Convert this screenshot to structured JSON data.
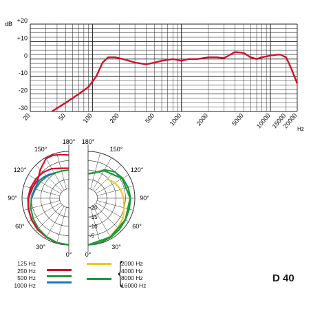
{
  "chart_data": [
    {
      "type": "line",
      "xscale": "log",
      "xlim": [
        20,
        20000
      ],
      "ylim": [
        -30,
        20
      ],
      "unit_y": "dB",
      "unit_x": "Hz",
      "y_ticks": [
        {
          "value": 20,
          "label": "+20"
        },
        {
          "value": 10,
          "label": "+10"
        },
        {
          "value": 0,
          "label": "0"
        },
        {
          "value": -10,
          "label": "-10"
        },
        {
          "value": -20,
          "label": "-20"
        },
        {
          "value": -30,
          "label": "-30"
        }
      ],
      "x_ticks": [
        {
          "value": 20,
          "label": "20"
        },
        {
          "value": 50,
          "label": "50"
        },
        {
          "value": 100,
          "label": "100"
        },
        {
          "value": 200,
          "label": "200"
        },
        {
          "value": 500,
          "label": "500"
        },
        {
          "value": 1000,
          "label": "1000"
        },
        {
          "value": 2000,
          "label": "2000"
        },
        {
          "value": 5000,
          "label": "5000"
        },
        {
          "value": 10000,
          "label": "10000"
        },
        {
          "value": 15000,
          "label": "15000"
        },
        {
          "value": 20000,
          "label": "20000"
        }
      ],
      "grid": true,
      "series": [
        {
          "color": "#d0102a",
          "x": [
            35,
            50,
            70,
            90,
            110,
            130,
            150,
            180,
            220,
            300,
            400,
            500,
            600,
            800,
            1000,
            1200,
            1500,
            2000,
            2500,
            3000,
            4000,
            5000,
            6000,
            7000,
            8000,
            10000,
            12000,
            13000,
            15000,
            17000,
            20000
          ],
          "y": [
            -30,
            -25,
            -20,
            -16,
            -10,
            -2,
            1,
            1,
            0,
            -2,
            -3,
            -2,
            -1,
            0,
            -1,
            0,
            0,
            1,
            1,
            0.5,
            4,
            3.5,
            1,
            0,
            1,
            2,
            2.5,
            2.5,
            1,
            -5,
            -14
          ]
        }
      ]
    },
    {
      "type": "polar",
      "r_min_db": -25,
      "r_ticks": [
        {
          "value": -5,
          "label": "-5"
        },
        {
          "value": -10,
          "label": "-10"
        },
        {
          "value": -15,
          "label": "-15"
        },
        {
          "value": -20,
          "label": "-20"
        }
      ],
      "angle_labels_left": [
        "180°",
        "150°",
        "120°",
        "90°",
        "60°",
        "30°",
        "0°"
      ],
      "angle_labels_right": [
        "180°",
        "150°",
        "120°",
        "90°",
        "60°",
        "30°",
        "0°"
      ],
      "series": [
        {
          "name": "125 Hz",
          "side": "left",
          "color": "#d0102a",
          "angles": [
            0,
            15,
            30,
            45,
            60,
            75,
            90,
            105,
            120,
            135,
            150,
            160,
            170,
            180
          ],
          "values": [
            0,
            -0.3,
            -1,
            -1.3,
            -2,
            -2.8,
            -3.5,
            -4.6,
            -5.8,
            -3.5,
            -0.6,
            -0.6,
            -1.4,
            -2
          ]
        },
        {
          "name": "250 Hz",
          "side": "left",
          "color": "#d0102a",
          "angles": [
            0,
            15,
            30,
            45,
            60,
            75,
            90,
            105,
            120,
            135,
            150,
            165,
            180
          ],
          "values": [
            0,
            -0.3,
            -1,
            -1.5,
            -2,
            -2.6,
            -3.2,
            -3.8,
            -4.6,
            -5.5,
            -6.8,
            -8.5,
            -9
          ]
        },
        {
          "name": "500 Hz",
          "side": "left",
          "color": "#1e9a3a",
          "angles": [
            0,
            15,
            30,
            45,
            60,
            75,
            90,
            105,
            120,
            135,
            150,
            165,
            180
          ],
          "values": [
            0,
            -0.4,
            -1.2,
            -2,
            -3,
            -4,
            -5,
            -6.5,
            -7.5,
            -8.5,
            -9.5,
            -10,
            -10
          ]
        },
        {
          "name": "1000 Hz",
          "side": "left",
          "color": "#1a73c8",
          "angles": [
            90,
            105,
            120,
            130,
            140,
            150
          ],
          "values": [
            -5.2,
            -6,
            -6.5,
            -7.5,
            -8.5,
            -9.5
          ]
        },
        {
          "name": "2000 Hz",
          "side": "right",
          "color": "#f2c81a",
          "angles": [
            0,
            15,
            30,
            45,
            60,
            75,
            90,
            105,
            120,
            130,
            135
          ],
          "values": [
            0,
            -0.5,
            -1.5,
            -2.5,
            -3.5,
            -5,
            -6,
            -7,
            -8.5,
            -10,
            -10.5
          ]
        },
        {
          "name": "4000 Hz",
          "side": "right",
          "color": "#1e9a3a",
          "angles": [
            0,
            15,
            30,
            45,
            60,
            75,
            90,
            105,
            120,
            135,
            150,
            165,
            180
          ],
          "values": [
            0,
            -0.3,
            -0.8,
            -1.3,
            -1.9,
            -2.2,
            -2.3,
            -2.8,
            -3.7,
            -5,
            -7.5,
            -11,
            -12
          ]
        },
        {
          "name": "8000 Hz",
          "side": "right",
          "color": "#1e9a3a",
          "angles": [
            0,
            30,
            60,
            90,
            120,
            150,
            180
          ],
          "values": [
            0,
            -1,
            -2,
            -2.5,
            -4,
            -8,
            -12
          ]
        },
        {
          "name": "16000 Hz",
          "side": "right",
          "color": "#1e9a3a",
          "angles": [
            0,
            30,
            60,
            90,
            120,
            150,
            180
          ],
          "values": [
            0,
            -1,
            -2,
            -2.5,
            -4,
            -8,
            -12
          ]
        }
      ]
    }
  ],
  "legend": {
    "left_labels": [
      "125 Hz",
      "250 Hz",
      "500 Hz",
      "1000 Hz"
    ],
    "right_labels": [
      "2000 Hz",
      "4000 Hz",
      "8000 Hz",
      "16000 Hz"
    ],
    "swatches_left": [
      "#d0102a",
      "#1e9a3a",
      "#1a73c8"
    ],
    "swatches_right": [
      "#f2c81a",
      "#1e9a3a"
    ]
  },
  "model": "D 40"
}
